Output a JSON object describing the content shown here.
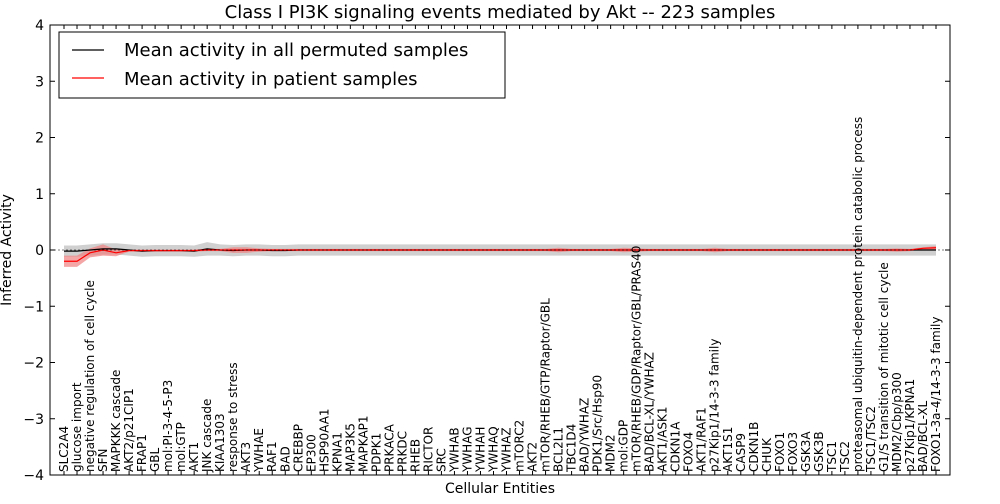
{
  "chart_data": {
    "type": "line",
    "title": "Class I PI3K signaling events mediated by Akt -- 223 samples",
    "xlabel": "Cellular Entities",
    "ylabel": "Inferred Activity",
    "ylim": [
      -4,
      4
    ],
    "yticks": [
      "4",
      "3",
      "2",
      "1",
      "0",
      "−1",
      "−2",
      "−3",
      "−4"
    ],
    "ytick_values": [
      4,
      3,
      2,
      1,
      0,
      -1,
      -2,
      -3,
      -4
    ],
    "legend": {
      "position": "top-left",
      "entries": [
        "Mean activity in all permuted samples",
        "Mean activity in patient samples"
      ]
    },
    "categories": [
      "SLC2A4",
      "glucose import",
      "negative regulation of cell cycle",
      "SFN",
      "MAPKKK cascade",
      "AKT2/p21CIP1",
      "FRAP1",
      "GBL",
      "mol:PI-3-4-5-P3",
      "mol:GTP",
      "AKT1",
      "JNK cascade",
      "KIAA1303",
      "response to stress",
      "AKT3",
      "YWHAE",
      "RAF1",
      "BAD",
      "CREBBP",
      "EP300",
      "HSP90AA1",
      "KPNA1",
      "MAP3K5",
      "MAPKAP1",
      "PDPK1",
      "PRKACA",
      "PRKDC",
      "RHEB",
      "RICTOR",
      "SRC",
      "YWHAB",
      "YWHAG",
      "YWHAH",
      "YWHAQ",
      "YWHAZ",
      "mTORC2",
      "AKT2",
      "mTOR/RHEB/GTP/Raptor/GBL",
      "BCL2L1",
      "TBC1D4",
      "BAD/YWHAZ",
      "PDK1/Src/Hsp90",
      "MDM2",
      "mol:GDP",
      "mTOR/RHEB/GDP/Raptor/GBL/PRAS40",
      "BAD/BCL-XL/YWHAZ",
      "AKT1/ASK1",
      "CDKN1A",
      "FOXO4",
      "AKT1/RAF1",
      "p27Kip1/14-3-3 family",
      "AKT1S1",
      "CASP9",
      "CDKN1B",
      "CHUK",
      "FOXO1",
      "FOXO3",
      "GSK3A",
      "GSK3B",
      "TSC1",
      "TSC2",
      "proteasomal ubiquitin-dependent protein catabolic process",
      "TSC1/TSC2",
      "G1/S transition of mitotic cell cycle",
      "MDM2/Cbp/p300",
      "p27Kip1/KPNA1",
      "BAD/BCL-XL",
      "FOXO1-3a-4/14-3-3 family"
    ],
    "series": [
      {
        "name": "Mean activity in all permuted samples",
        "color": "#000000",
        "band_color": "#b0b0b0",
        "values": [
          -0.02,
          -0.02,
          0,
          0.02,
          0.02,
          0,
          -0.02,
          -0.01,
          -0.01,
          -0.01,
          -0.02,
          0.02,
          0,
          -0.01,
          0,
          0,
          -0.01,
          -0.01,
          0,
          0,
          0,
          0,
          0,
          0,
          0,
          0,
          0,
          0,
          0,
          0,
          0,
          0,
          0,
          0,
          0,
          0,
          0,
          0,
          0,
          0,
          0,
          0,
          0,
          0,
          0,
          0,
          0,
          0,
          0,
          0,
          0,
          0,
          0,
          0,
          0,
          0,
          0,
          0,
          0,
          0,
          0,
          0,
          0,
          0,
          0,
          0,
          0,
          0
        ],
        "band": [
          0.1,
          0.1,
          0.1,
          0.1,
          0.1,
          0.1,
          0.1,
          0.1,
          0.1,
          0.1,
          0.1,
          0.12,
          0.1,
          0.1,
          0.1,
          0.1,
          0.1,
          0.1,
          0.1,
          0.1,
          0.1,
          0.1,
          0.1,
          0.1,
          0.1,
          0.1,
          0.1,
          0.1,
          0.1,
          0.1,
          0.1,
          0.1,
          0.1,
          0.1,
          0.1,
          0.1,
          0.1,
          0.1,
          0.1,
          0.1,
          0.1,
          0.1,
          0.1,
          0.1,
          0.1,
          0.1,
          0.1,
          0.1,
          0.1,
          0.1,
          0.1,
          0.1,
          0.1,
          0.1,
          0.1,
          0.1,
          0.1,
          0.1,
          0.1,
          0.1,
          0.1,
          0.1,
          0.1,
          0.1,
          0.1,
          0.1,
          0.1,
          0.1
        ]
      },
      {
        "name": "Mean activity in patient samples",
        "color": "#ff0000",
        "band_color": "#f08080",
        "values": [
          -0.2,
          -0.2,
          -0.05,
          0,
          -0.05,
          -0.01,
          -0.01,
          -0.01,
          -0.01,
          -0.01,
          -0.01,
          0,
          0,
          0,
          0,
          0,
          0,
          0,
          0,
          0,
          0,
          0,
          0,
          0,
          0,
          0,
          0,
          0,
          0,
          0,
          0,
          0,
          0,
          0,
          0,
          0,
          0,
          0,
          0,
          0,
          0,
          0,
          0,
          0,
          0,
          0,
          0,
          0,
          0,
          0,
          0,
          0,
          0,
          0,
          0,
          0,
          0,
          0,
          0,
          0,
          0,
          0,
          0,
          0,
          0,
          0,
          0.03,
          0.04
        ],
        "band": [
          0.1,
          0.1,
          0.08,
          0.1,
          0.06,
          0.02,
          0.02,
          0.02,
          0.02,
          0.02,
          0.02,
          0.02,
          0.02,
          0.05,
          0.05,
          0.03,
          0.02,
          0.02,
          0.02,
          0.02,
          0.02,
          0.02,
          0.02,
          0.02,
          0.02,
          0.02,
          0.02,
          0.02,
          0.02,
          0.02,
          0.02,
          0.02,
          0.02,
          0.02,
          0.02,
          0.02,
          0.02,
          0.02,
          0.04,
          0.02,
          0.02,
          0.02,
          0.02,
          0.04,
          0.03,
          0.02,
          0.02,
          0.02,
          0.02,
          0.02,
          0.04,
          0.02,
          0.02,
          0.02,
          0.02,
          0.02,
          0.02,
          0.02,
          0.02,
          0.02,
          0.02,
          0.02,
          0.02,
          0.02,
          0.03,
          0.02,
          0.02,
          0.03
        ]
      }
    ]
  }
}
